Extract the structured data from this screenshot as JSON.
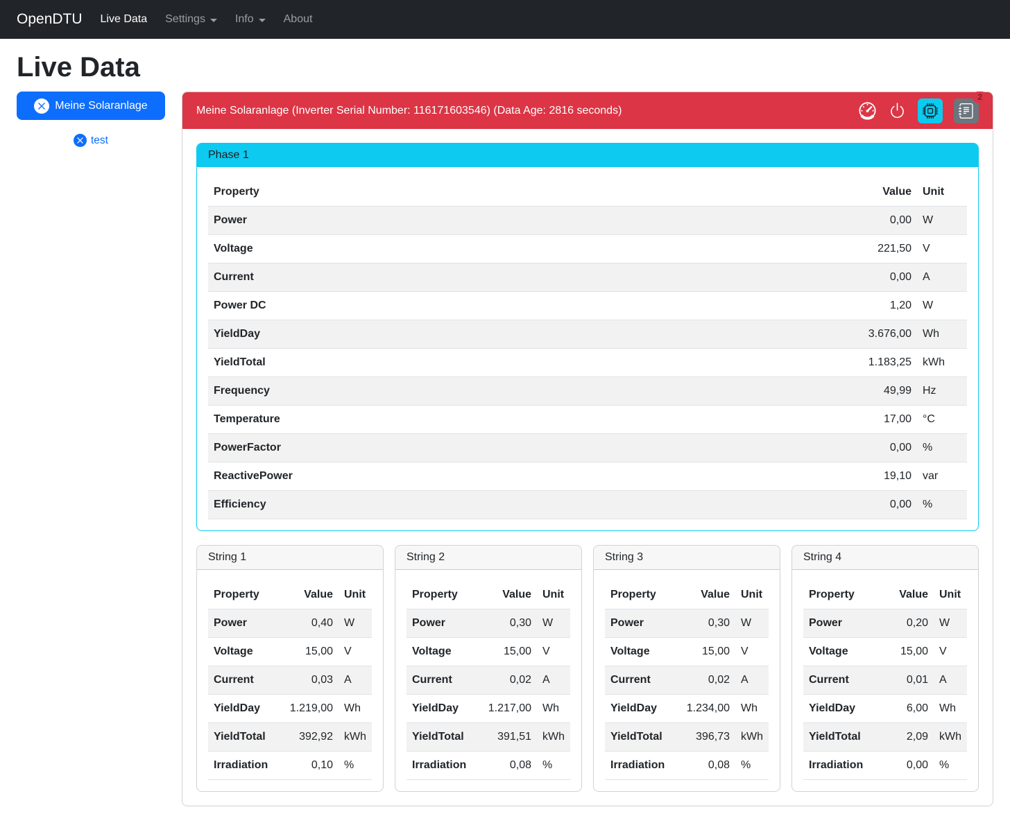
{
  "navbar": {
    "brand": "OpenDTU",
    "items": [
      {
        "label": "Live Data",
        "active": true,
        "dropdown": false
      },
      {
        "label": "Settings",
        "active": false,
        "dropdown": true
      },
      {
        "label": "Info",
        "active": false,
        "dropdown": true
      },
      {
        "label": "About",
        "active": false,
        "dropdown": false
      }
    ]
  },
  "page_title": "Live Data",
  "inverter_selector": {
    "selected_label": "Meine Solaranlage",
    "secondary_label": "test"
  },
  "inverter_card": {
    "title": "Meine Solaranlage (Inverter Serial Number: 116171603546) (Data Age: 2816 seconds)",
    "event_count": "2",
    "action_icons": [
      "speedometer-icon",
      "power-icon",
      "cpu-icon",
      "journal-text-icon"
    ]
  },
  "table_columns": {
    "property": "Property",
    "value": "Value",
    "unit": "Unit"
  },
  "phase_card": {
    "title": "Phase 1",
    "rows": [
      {
        "property": "Power",
        "value": "0,00",
        "unit": "W"
      },
      {
        "property": "Voltage",
        "value": "221,50",
        "unit": "V"
      },
      {
        "property": "Current",
        "value": "0,00",
        "unit": "A"
      },
      {
        "property": "Power DC",
        "value": "1,20",
        "unit": "W"
      },
      {
        "property": "YieldDay",
        "value": "3.676,00",
        "unit": "Wh"
      },
      {
        "property": "YieldTotal",
        "value": "1.183,25",
        "unit": "kWh"
      },
      {
        "property": "Frequency",
        "value": "49,99",
        "unit": "Hz"
      },
      {
        "property": "Temperature",
        "value": "17,00",
        "unit": "°C"
      },
      {
        "property": "PowerFactor",
        "value": "0,00",
        "unit": "%"
      },
      {
        "property": "ReactivePower",
        "value": "19,10",
        "unit": "var"
      },
      {
        "property": "Efficiency",
        "value": "0,00",
        "unit": "%"
      }
    ]
  },
  "string_cards": [
    {
      "title": "String 1",
      "rows": [
        {
          "property": "Power",
          "value": "0,40",
          "unit": "W"
        },
        {
          "property": "Voltage",
          "value": "15,00",
          "unit": "V"
        },
        {
          "property": "Current",
          "value": "0,03",
          "unit": "A"
        },
        {
          "property": "YieldDay",
          "value": "1.219,00",
          "unit": "Wh"
        },
        {
          "property": "YieldTotal",
          "value": "392,92",
          "unit": "kWh"
        },
        {
          "property": "Irradiation",
          "value": "0,10",
          "unit": "%"
        }
      ]
    },
    {
      "title": "String 2",
      "rows": [
        {
          "property": "Power",
          "value": "0,30",
          "unit": "W"
        },
        {
          "property": "Voltage",
          "value": "15,00",
          "unit": "V"
        },
        {
          "property": "Current",
          "value": "0,02",
          "unit": "A"
        },
        {
          "property": "YieldDay",
          "value": "1.217,00",
          "unit": "Wh"
        },
        {
          "property": "YieldTotal",
          "value": "391,51",
          "unit": "kWh"
        },
        {
          "property": "Irradiation",
          "value": "0,08",
          "unit": "%"
        }
      ]
    },
    {
      "title": "String 3",
      "rows": [
        {
          "property": "Power",
          "value": "0,30",
          "unit": "W"
        },
        {
          "property": "Voltage",
          "value": "15,00",
          "unit": "V"
        },
        {
          "property": "Current",
          "value": "0,02",
          "unit": "A"
        },
        {
          "property": "YieldDay",
          "value": "1.234,00",
          "unit": "Wh"
        },
        {
          "property": "YieldTotal",
          "value": "396,73",
          "unit": "kWh"
        },
        {
          "property": "Irradiation",
          "value": "0,08",
          "unit": "%"
        }
      ]
    },
    {
      "title": "String 4",
      "rows": [
        {
          "property": "Power",
          "value": "0,20",
          "unit": "W"
        },
        {
          "property": "Voltage",
          "value": "15,00",
          "unit": "V"
        },
        {
          "property": "Current",
          "value": "0,01",
          "unit": "A"
        },
        {
          "property": "YieldDay",
          "value": "6,00",
          "unit": "Wh"
        },
        {
          "property": "YieldTotal",
          "value": "2,09",
          "unit": "kWh"
        },
        {
          "property": "Irradiation",
          "value": "0,00",
          "unit": "%"
        }
      ]
    }
  ],
  "colors": {
    "navbar_bg": "#212529",
    "primary": "#0d6efd",
    "danger": "#dc3545",
    "info": "#0dcaf0",
    "secondary": "#6c757d",
    "table_stripe": "#f2f2f2",
    "table_border": "#dee2e6"
  }
}
